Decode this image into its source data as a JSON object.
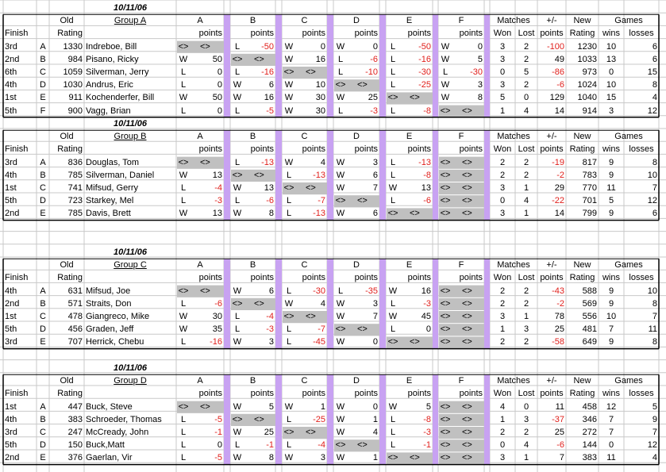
{
  "colors": {
    "purple": "#c8a2f2",
    "gray": "#c0c0c0",
    "red": "#e0201c",
    "grid": "#c8c8c8"
  },
  "header": {
    "old": "Old",
    "rating": "Rating",
    "finish": "Finish",
    "opponents": [
      "A",
      "B",
      "C",
      "D",
      "E",
      "F"
    ],
    "points": "points",
    "matches": "Matches",
    "won": "Won",
    "lost": "Lost",
    "plusminus": "+/-",
    "pm_points": "points",
    "new": "New",
    "new_rating": "Rating",
    "games": "Games",
    "wins": "wins",
    "losses": "losses"
  },
  "groups": [
    {
      "date": "10/11/06",
      "name": "Group A",
      "rows": [
        {
          "finish": "3rd",
          "letter": "A",
          "old": "1330",
          "name": "Indreboe, Bill",
          "m": [
            [
              "<>",
              "<>"
            ],
            [
              "L",
              "-50"
            ],
            [
              "W",
              "0"
            ],
            [
              "W",
              "0"
            ],
            [
              "L",
              "-50"
            ],
            [
              "W",
              "0"
            ]
          ],
          "won": "3",
          "lost": "2",
          "pm": "-100",
          "new": "1230",
          "wins": "10",
          "losses": "6"
        },
        {
          "finish": "2nd",
          "letter": "B",
          "old": "984",
          "name": "Pisano, Ricky",
          "m": [
            [
              "W",
              "50"
            ],
            [
              "<>",
              "<>"
            ],
            [
              "W",
              "16"
            ],
            [
              "L",
              "-6"
            ],
            [
              "L",
              "-16"
            ],
            [
              "W",
              "5"
            ]
          ],
          "won": "3",
          "lost": "2",
          "pm": "49",
          "new": "1033",
          "wins": "13",
          "losses": "6"
        },
        {
          "finish": "6th",
          "letter": "C",
          "old": "1059",
          "name": "Silverman, Jerry",
          "m": [
            [
              "L",
              "0"
            ],
            [
              "L",
              "-16"
            ],
            [
              "<>",
              "<>"
            ],
            [
              "L",
              "-10"
            ],
            [
              "L",
              "-30"
            ],
            [
              "L",
              "-30"
            ]
          ],
          "won": "0",
          "lost": "5",
          "pm": "-86",
          "new": "973",
          "wins": "0",
          "losses": "15"
        },
        {
          "finish": "4th",
          "letter": "D",
          "old": "1030",
          "name": "Andrus, Eric",
          "m": [
            [
              "L",
              "0"
            ],
            [
              "W",
              "6"
            ],
            [
              "W",
              "10"
            ],
            [
              "<>",
              "<>"
            ],
            [
              "L",
              "-25"
            ],
            [
              "W",
              "3"
            ]
          ],
          "won": "3",
          "lost": "2",
          "pm": "-6",
          "new": "1024",
          "wins": "10",
          "losses": "8"
        },
        {
          "finish": "1st",
          "letter": "E",
          "old": "911",
          "name": "Kochenderfer, Bill",
          "m": [
            [
              "W",
              "50"
            ],
            [
              "W",
              "16"
            ],
            [
              "W",
              "30"
            ],
            [
              "W",
              "25"
            ],
            [
              "<>",
              "<>"
            ],
            [
              "W",
              "8"
            ]
          ],
          "won": "5",
          "lost": "0",
          "pm": "129",
          "new": "1040",
          "wins": "15",
          "losses": "4"
        },
        {
          "finish": "5th",
          "letter": "F",
          "old": "900",
          "name": "Vagg, Brian",
          "m": [
            [
              "L",
              "0"
            ],
            [
              "L",
              "-5"
            ],
            [
              "W",
              "30"
            ],
            [
              "L",
              "-3"
            ],
            [
              "L",
              "-8"
            ],
            [
              "<>",
              "<>"
            ]
          ],
          "won": "1",
          "lost": "4",
          "pm": "14",
          "new": "914",
          "wins": "3",
          "losses": "12"
        }
      ]
    },
    {
      "date": "10/11/06",
      "name": "Group B",
      "rows": [
        {
          "finish": "3rd",
          "letter": "A",
          "old": "836",
          "name": "Douglas, Tom",
          "m": [
            [
              "<>",
              "<>"
            ],
            [
              "L",
              "-13"
            ],
            [
              "W",
              "4"
            ],
            [
              "W",
              "3"
            ],
            [
              "L",
              "-13"
            ],
            [
              "<>",
              "<>"
            ]
          ],
          "won": "2",
          "lost": "2",
          "pm": "-19",
          "new": "817",
          "wins": "9",
          "losses": "8"
        },
        {
          "finish": "4th",
          "letter": "B",
          "old": "785",
          "name": "Silverman, Daniel",
          "m": [
            [
              "W",
              "13"
            ],
            [
              "<>",
              "<>"
            ],
            [
              "L",
              "-13"
            ],
            [
              "W",
              "6"
            ],
            [
              "L",
              "-8"
            ],
            [
              "<>",
              "<>"
            ]
          ],
          "won": "2",
          "lost": "2",
          "pm": "-2",
          "new": "783",
          "wins": "9",
          "losses": "10"
        },
        {
          "finish": "1st",
          "letter": "C",
          "old": "741",
          "name": "Mifsud, Gerry",
          "m": [
            [
              "L",
              "-4"
            ],
            [
              "W",
              "13"
            ],
            [
              "<>",
              "<>"
            ],
            [
              "W",
              "7"
            ],
            [
              "W",
              "13"
            ],
            [
              "<>",
              "<>"
            ]
          ],
          "won": "3",
          "lost": "1",
          "pm": "29",
          "new": "770",
          "wins": "11",
          "losses": "7"
        },
        {
          "finish": "5th",
          "letter": "D",
          "old": "723",
          "name": "Starkey, Mel",
          "m": [
            [
              "L",
              "-3"
            ],
            [
              "L",
              "-6"
            ],
            [
              "L",
              "-7"
            ],
            [
              "<>",
              "<>"
            ],
            [
              "L",
              "-6"
            ],
            [
              "<>",
              "<>"
            ]
          ],
          "won": "0",
          "lost": "4",
          "pm": "-22",
          "new": "701",
          "wins": "5",
          "losses": "12"
        },
        {
          "finish": "2nd",
          "letter": "E",
          "old": "785",
          "name": "Davis, Brett",
          "m": [
            [
              "W",
              "13"
            ],
            [
              "W",
              "8"
            ],
            [
              "L",
              "-13"
            ],
            [
              "W",
              "6"
            ],
            [
              "<>",
              "<>"
            ],
            [
              "<>",
              "<>"
            ]
          ],
          "won": "3",
          "lost": "1",
          "pm": "14",
          "new": "799",
          "wins": "9",
          "losses": "6"
        }
      ]
    },
    {
      "date": "10/11/06",
      "name": "Group C",
      "rows": [
        {
          "finish": "4th",
          "letter": "A",
          "old": "631",
          "name": "Mifsud, Joe",
          "m": [
            [
              "<>",
              "<>"
            ],
            [
              "W",
              "6"
            ],
            [
              "L",
              "-30"
            ],
            [
              "L",
              "-35"
            ],
            [
              "W",
              "16"
            ],
            [
              "<>",
              "<>"
            ]
          ],
          "won": "2",
          "lost": "2",
          "pm": "-43",
          "new": "588",
          "wins": "9",
          "losses": "10"
        },
        {
          "finish": "2nd",
          "letter": "B",
          "old": "571",
          "name": "Straits, Don",
          "m": [
            [
              "L",
              "-6"
            ],
            [
              "<>",
              "<>"
            ],
            [
              "W",
              "4"
            ],
            [
              "W",
              "3"
            ],
            [
              "L",
              "-3"
            ],
            [
              "<>",
              "<>"
            ]
          ],
          "won": "2",
          "lost": "2",
          "pm": "-2",
          "new": "569",
          "wins": "9",
          "losses": "8"
        },
        {
          "finish": "1st",
          "letter": "C",
          "old": "478",
          "name": "Giangreco, Mike",
          "m": [
            [
              "W",
              "30"
            ],
            [
              "L",
              "-4"
            ],
            [
              "<>",
              "<>"
            ],
            [
              "W",
              "7"
            ],
            [
              "W",
              "45"
            ],
            [
              "<>",
              "<>"
            ]
          ],
          "won": "3",
          "lost": "1",
          "pm": "78",
          "new": "556",
          "wins": "10",
          "losses": "7"
        },
        {
          "finish": "5th",
          "letter": "D",
          "old": "456",
          "name": "Graden, Jeff",
          "m": [
            [
              "W",
              "35"
            ],
            [
              "L",
              "-3"
            ],
            [
              "L",
              "-7"
            ],
            [
              "<>",
              "<>"
            ],
            [
              "L",
              "0"
            ],
            [
              "<>",
              "<>"
            ]
          ],
          "won": "1",
          "lost": "3",
          "pm": "25",
          "new": "481",
          "wins": "7",
          "losses": "11"
        },
        {
          "finish": "3rd",
          "letter": "E",
          "old": "707",
          "name": "Herrick, Chebu",
          "m": [
            [
              "L",
              "-16"
            ],
            [
              "W",
              "3"
            ],
            [
              "L",
              "-45"
            ],
            [
              "W",
              "0"
            ],
            [
              "<>",
              "<>"
            ],
            [
              "<>",
              "<>"
            ]
          ],
          "won": "2",
          "lost": "2",
          "pm": "-58",
          "new": "649",
          "wins": "9",
          "losses": "8"
        }
      ]
    },
    {
      "date": "10/11/06",
      "name": "Group D",
      "rows": [
        {
          "finish": "1st",
          "letter": "A",
          "old": "447",
          "name": "Buck, Steve",
          "m": [
            [
              "<>",
              "<>"
            ],
            [
              "W",
              "5"
            ],
            [
              "W",
              "1"
            ],
            [
              "W",
              "0"
            ],
            [
              "W",
              "5"
            ],
            [
              "<>",
              "<>"
            ]
          ],
          "won": "4",
          "lost": "0",
          "pm": "11",
          "new": "458",
          "wins": "12",
          "losses": "5"
        },
        {
          "finish": "4th",
          "letter": "B",
          "old": "383",
          "name": "Schroeder, Thomas",
          "m": [
            [
              "L",
              "-5"
            ],
            [
              "<>",
              "<>"
            ],
            [
              "L",
              "-25"
            ],
            [
              "W",
              "1"
            ],
            [
              "L",
              "-8"
            ],
            [
              "<>",
              "<>"
            ]
          ],
          "won": "1",
          "lost": "3",
          "pm": "-37",
          "new": "346",
          "wins": "7",
          "losses": "9"
        },
        {
          "finish": "3rd",
          "letter": "C",
          "old": "247",
          "name": "McCready, John",
          "m": [
            [
              "L",
              "-1"
            ],
            [
              "W",
              "25"
            ],
            [
              "<>",
              "<>"
            ],
            [
              "W",
              "4"
            ],
            [
              "L",
              "-3"
            ],
            [
              "<>",
              "<>"
            ]
          ],
          "won": "2",
          "lost": "2",
          "pm": "25",
          "new": "272",
          "wins": "7",
          "losses": "7"
        },
        {
          "finish": "5th",
          "letter": "D",
          "old": "150",
          "name": "Buck,Matt",
          "m": [
            [
              "L",
              "0"
            ],
            [
              "L",
              "-1"
            ],
            [
              "L",
              "-4"
            ],
            [
              "<>",
              "<>"
            ],
            [
              "L",
              "-1"
            ],
            [
              "<>",
              "<>"
            ]
          ],
          "won": "0",
          "lost": "4",
          "pm": "-6",
          "new": "144",
          "wins": "0",
          "losses": "12"
        },
        {
          "finish": "2nd",
          "letter": "E",
          "old": "376",
          "name": "Gaerlan, Vir",
          "m": [
            [
              "L",
              "-5"
            ],
            [
              "W",
              "8"
            ],
            [
              "W",
              "3"
            ],
            [
              "W",
              "1"
            ],
            [
              "<>",
              "<>"
            ],
            [
              "<>",
              "<>"
            ]
          ],
          "won": "3",
          "lost": "1",
          "pm": "7",
          "new": "383",
          "wins": "11",
          "losses": "4"
        }
      ]
    }
  ]
}
